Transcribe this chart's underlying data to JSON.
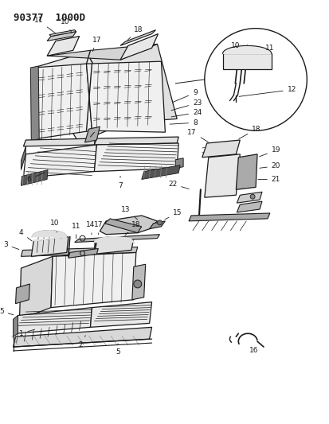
{
  "title": "90377  1000D",
  "bg_color": "#ffffff",
  "lc": "#1a1a1a",
  "fs": 6.5,
  "title_fs": 9
}
